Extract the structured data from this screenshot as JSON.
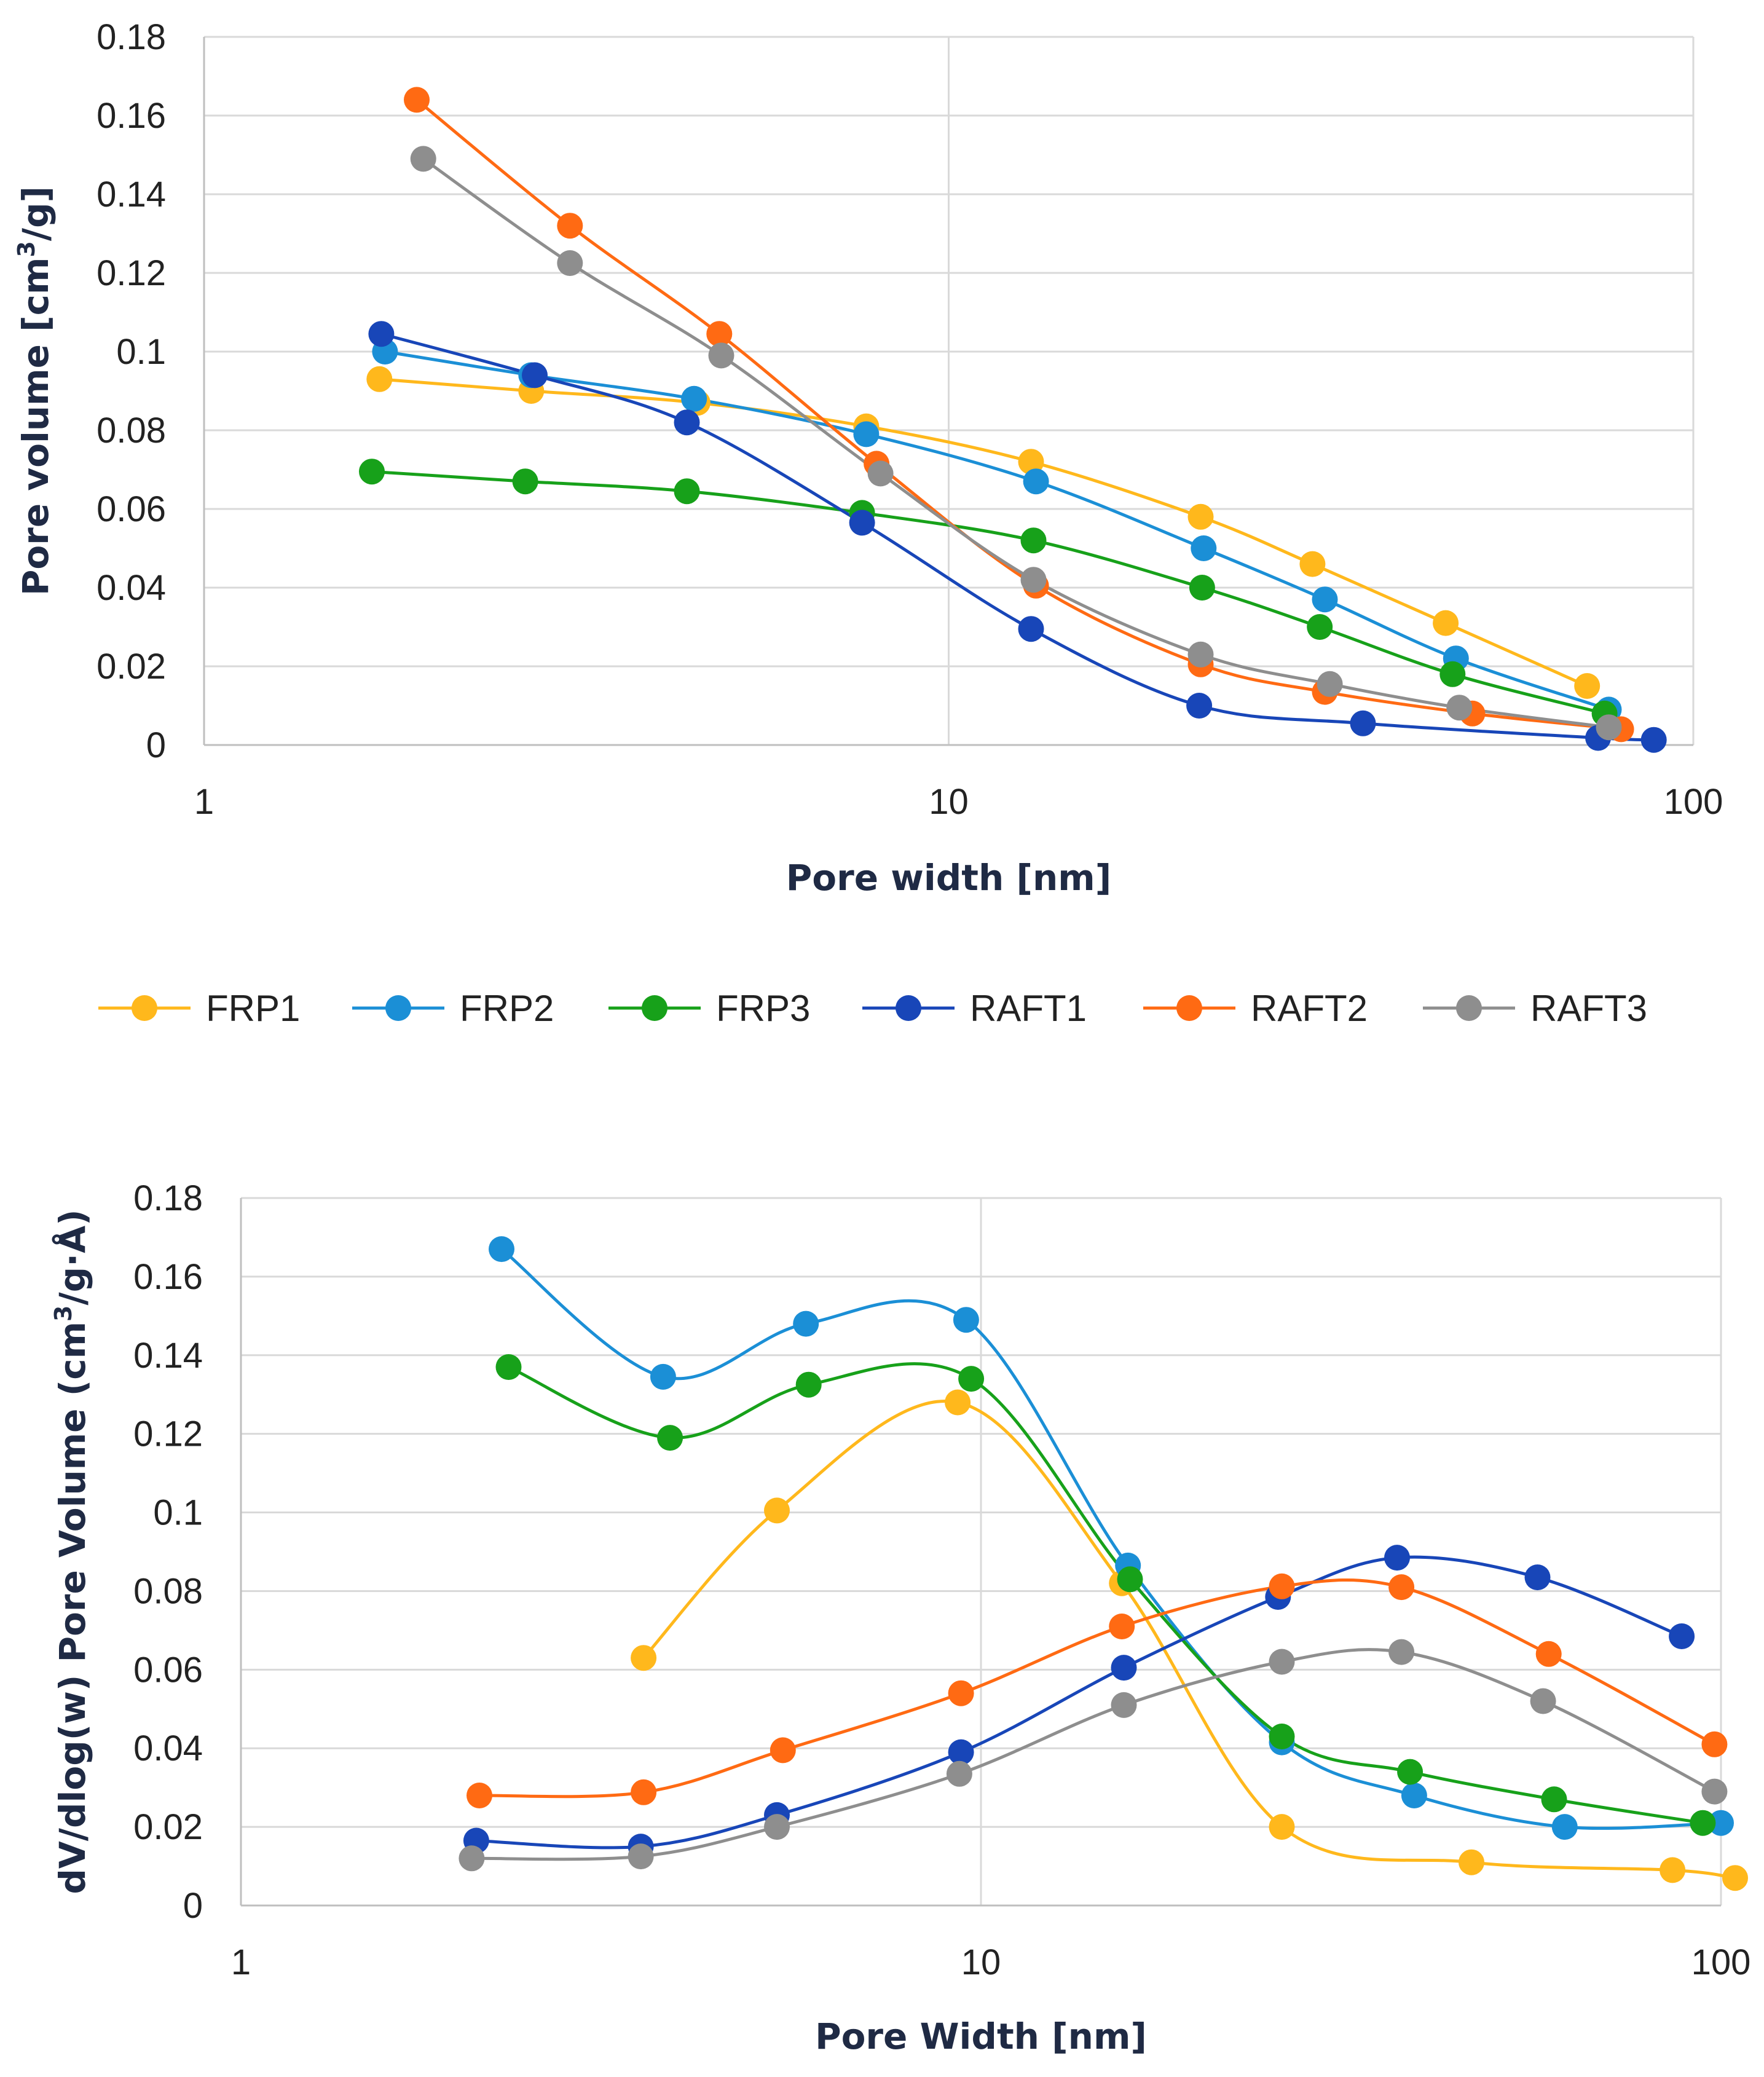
{
  "legend": [
    {
      "name": "FRP1",
      "color": "#FFB81C"
    },
    {
      "name": "FRP2",
      "color": "#1B8FD6"
    },
    {
      "name": "FRP3",
      "color": "#17A11A"
    },
    {
      "name": "RAFT1",
      "color": "#1846B8"
    },
    {
      "name": "RAFT2",
      "color": "#FF6A13"
    },
    {
      "name": "RAFT3",
      "color": "#8E8E8E"
    }
  ],
  "chart_data": [
    {
      "type": "line",
      "x_scale": "log",
      "xlabel": "Pore width [nm]",
      "ylabel_main": "Pore volume [cm",
      "ylabel_sup": "3",
      "ylabel_tail": "/g]",
      "xlim": [
        1,
        100
      ],
      "ylim": [
        0,
        0.18
      ],
      "x_ticks": [
        1,
        10,
        100
      ],
      "x_tick_labels": [
        "1",
        "10",
        "100"
      ],
      "y_ticks": [
        0,
        0.02,
        0.04,
        0.06,
        0.08,
        0.1,
        0.12,
        0.14,
        0.16,
        0.18
      ],
      "y_tick_labels": [
        "0",
        "0.02",
        "0.04",
        "0.06",
        "0.08",
        "0.1",
        "0.12",
        "0.14",
        "0.16",
        "0.18"
      ],
      "series": [
        {
          "name": "FRP1",
          "x": [
            1.72,
            2.75,
            4.6,
            7.75,
            12.9,
            21.8,
            30.8,
            46.5,
            72.0
          ],
          "y": [
            0.093,
            0.09,
            0.087,
            0.081,
            0.072,
            0.058,
            0.046,
            0.031,
            0.015
          ]
        },
        {
          "name": "FRP2",
          "x": [
            1.75,
            2.75,
            4.55,
            7.75,
            13.1,
            22.0,
            32.0,
            48.0,
            77.0
          ],
          "y": [
            0.1,
            0.094,
            0.088,
            0.079,
            0.067,
            0.05,
            0.037,
            0.022,
            0.009
          ]
        },
        {
          "name": "FRP3",
          "x": [
            1.68,
            2.7,
            4.45,
            7.65,
            13.0,
            21.9,
            31.5,
            47.5,
            76.0
          ],
          "y": [
            0.0695,
            0.067,
            0.0645,
            0.059,
            0.052,
            0.04,
            0.03,
            0.018,
            0.008
          ]
        },
        {
          "name": "RAFT1",
          "x": [
            1.73,
            2.78,
            4.45,
            7.65,
            12.9,
            21.7,
            36.0,
            74.5,
            88.5
          ],
          "y": [
            0.1045,
            0.094,
            0.082,
            0.0565,
            0.0295,
            0.01,
            0.0055,
            0.0018,
            0.0013
          ]
        },
        {
          "name": "RAFT2",
          "x": [
            1.93,
            3.1,
            4.92,
            8.0,
            13.1,
            21.8,
            32.0,
            50.5,
            80.0
          ],
          "y": [
            0.164,
            0.132,
            0.1045,
            0.0715,
            0.0405,
            0.0205,
            0.0135,
            0.008,
            0.004
          ]
        },
        {
          "name": "RAFT3",
          "x": [
            1.97,
            3.1,
            4.95,
            8.1,
            13.0,
            21.8,
            32.5,
            48.5,
            77.0
          ],
          "y": [
            0.149,
            0.1225,
            0.099,
            0.069,
            0.042,
            0.023,
            0.0155,
            0.0095,
            0.0045
          ]
        }
      ]
    },
    {
      "type": "line",
      "x_scale": "log",
      "xlabel": "Pore Width [nm]",
      "ylabel_main": "dV/dlog(w) Pore Volume (cm",
      "ylabel_sup": "3",
      "ylabel_tail": "/g·Å)",
      "xlim": [
        1,
        100
      ],
      "ylim": [
        0,
        0.18
      ],
      "x_ticks": [
        1,
        10,
        100
      ],
      "x_tick_labels": [
        "1",
        "10",
        "100"
      ],
      "y_ticks": [
        0,
        0.02,
        0.04,
        0.06,
        0.08,
        0.1,
        0.12,
        0.14,
        0.16,
        0.18
      ],
      "y_tick_labels": [
        "0",
        "0.02",
        "0.04",
        "0.06",
        "0.08",
        "0.1",
        "0.12",
        "0.14",
        "0.16",
        "0.18"
      ],
      "series": [
        {
          "name": "FRP1",
          "x": [
            3.5,
            5.3,
            9.3,
            15.5,
            25.5,
            46.0,
            86.0,
            104.5
          ],
          "y": [
            0.063,
            0.1005,
            0.128,
            0.082,
            0.02,
            0.011,
            0.009,
            0.007
          ]
        },
        {
          "name": "FRP2",
          "x": [
            2.25,
            3.72,
            5.8,
            9.55,
            15.8,
            25.5,
            38.5,
            61.5,
            100.0
          ],
          "y": [
            0.167,
            0.1345,
            0.148,
            0.149,
            0.0865,
            0.0415,
            0.028,
            0.02,
            0.021
          ]
        },
        {
          "name": "FRP3",
          "x": [
            2.3,
            3.8,
            5.85,
            9.7,
            15.9,
            25.5,
            38.0,
            59.5,
            94.5
          ],
          "y": [
            0.137,
            0.119,
            0.1325,
            0.134,
            0.083,
            0.043,
            0.034,
            0.027,
            0.021
          ]
        },
        {
          "name": "RAFT1",
          "x": [
            2.08,
            3.47,
            5.3,
            9.4,
            15.6,
            25.2,
            36.5,
            56.5,
            88.5
          ],
          "y": [
            0.0165,
            0.015,
            0.023,
            0.039,
            0.0605,
            0.0785,
            0.0885,
            0.0835,
            0.0685
          ]
        },
        {
          "name": "RAFT2",
          "x": [
            2.1,
            3.5,
            5.4,
            9.4,
            15.5,
            25.5,
            37.0,
            58.5,
            98.0
          ],
          "y": [
            0.028,
            0.0288,
            0.0395,
            0.054,
            0.071,
            0.0812,
            0.081,
            0.064,
            0.041
          ]
        },
        {
          "name": "RAFT3",
          "x": [
            2.05,
            3.47,
            5.3,
            9.35,
            15.6,
            25.5,
            37.0,
            57.5,
            98.0
          ],
          "y": [
            0.012,
            0.0125,
            0.02,
            0.0335,
            0.051,
            0.062,
            0.0645,
            0.052,
            0.029
          ]
        }
      ]
    }
  ]
}
